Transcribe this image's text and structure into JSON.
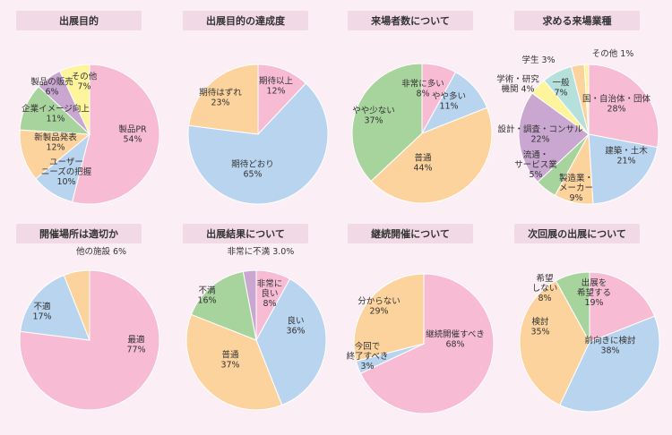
{
  "chart_data": [
    {
      "type": "pie",
      "title": "出展目的",
      "slices": [
        {
          "label": [
            "製品PR",
            "54%"
          ],
          "value": 54,
          "color": "#f7bcd4"
        },
        {
          "label": [
            "ユーザー",
            "ニーズの把握",
            "10%"
          ],
          "value": 10,
          "color": "#b8d4ef"
        },
        {
          "label": [
            "新製品発表",
            "12%"
          ],
          "value": 12,
          "color": "#fcd39d"
        },
        {
          "label": [
            "企業イメージ向上",
            "11%"
          ],
          "value": 11,
          "color": "#a7d39c"
        },
        {
          "label": [
            "製品の販売",
            "6%"
          ],
          "value": 6,
          "color": "#c9a7d0"
        },
        {
          "label": [
            "その他",
            "7%"
          ],
          "value": 7,
          "color": "#fdf49b"
        }
      ]
    },
    {
      "type": "pie",
      "title": "出展目的の達成度",
      "slices": [
        {
          "label": [
            "期待以上",
            "12%"
          ],
          "value": 12,
          "color": "#f7bcd4"
        },
        {
          "label": [
            "期待どおり",
            "65%"
          ],
          "value": 65,
          "color": "#b8d4ef"
        },
        {
          "label": [
            "期待はずれ",
            "23%"
          ],
          "value": 23,
          "color": "#fcd39d"
        }
      ]
    },
    {
      "type": "pie",
      "title": "来場者数について",
      "slices": [
        {
          "label": [
            "非常に多い",
            "8%"
          ],
          "value": 8,
          "color": "#f7bcd4"
        },
        {
          "label": [
            "やや多い",
            "11%"
          ],
          "value": 11,
          "color": "#b8d4ef"
        },
        {
          "label": [
            "普通",
            "44%"
          ],
          "value": 44,
          "color": "#fcd39d"
        },
        {
          "label": [
            "やや少ない",
            "37%"
          ],
          "value": 37,
          "color": "#a7d39c"
        }
      ]
    },
    {
      "type": "pie",
      "title": "求める来場業種",
      "slices": [
        {
          "label": [
            "国・自治体・団体",
            "28%"
          ],
          "value": 28,
          "color": "#f7bcd4"
        },
        {
          "label": [
            "建築・土木",
            "21%"
          ],
          "value": 21,
          "color": "#b8d4ef"
        },
        {
          "label": [
            "製造業・",
            "メーカー",
            "9%"
          ],
          "value": 9,
          "color": "#fcd39d"
        },
        {
          "label": [
            "流通・",
            "サービス業",
            "5%"
          ],
          "value": 5,
          "color": "#a7d39c"
        },
        {
          "label": [
            "設計・調査・コンサル",
            "22%"
          ],
          "value": 22,
          "color": "#c9a7d0"
        },
        {
          "label": [
            "学術・研究",
            "機関 4%"
          ],
          "value": 4,
          "color": "#fdf49b"
        },
        {
          "label": [
            "一般",
            "7%"
          ],
          "value": 7,
          "color": "#b5e0dc"
        },
        {
          "label": [
            "学生 3%"
          ],
          "value": 3,
          "color": "#fcd39d"
        },
        {
          "label": [
            "その他 1%"
          ],
          "value": 1,
          "color": "#fdf49b"
        }
      ]
    },
    {
      "type": "pie",
      "title": "開催場所は適切か",
      "slices": [
        {
          "label": [
            "最適",
            "77%"
          ],
          "value": 77,
          "color": "#f7bcd4"
        },
        {
          "label": [
            "不適",
            "17%"
          ],
          "value": 17,
          "color": "#b8d4ef"
        },
        {
          "label": [
            "他の施設 6%"
          ],
          "value": 6,
          "color": "#fcd39d"
        }
      ]
    },
    {
      "type": "pie",
      "title": "出展結果について",
      "slices": [
        {
          "label": [
            "非常に",
            "良い",
            "8%"
          ],
          "value": 8,
          "color": "#f7bcd4"
        },
        {
          "label": [
            "良い",
            "36%"
          ],
          "value": 36,
          "color": "#b8d4ef"
        },
        {
          "label": [
            "普通",
            "37%"
          ],
          "value": 37,
          "color": "#fcd39d"
        },
        {
          "label": [
            "不満",
            "16%"
          ],
          "value": 16,
          "color": "#a7d39c"
        },
        {
          "label": [
            "非常に不満 3.0%"
          ],
          "value": 3,
          "color": "#c9a7d0"
        }
      ]
    },
    {
      "type": "pie",
      "title": "継続開催について",
      "slices": [
        {
          "label": [
            "継続開催すべき",
            "68%"
          ],
          "value": 68,
          "color": "#f7bcd4"
        },
        {
          "label": [
            "今回で",
            "終了すべき",
            "3%"
          ],
          "value": 3,
          "color": "#b8d4ef"
        },
        {
          "label": [
            "分からない",
            "29%"
          ],
          "value": 29,
          "color": "#fcd39d"
        }
      ]
    },
    {
      "type": "pie",
      "title": "次回展の出展について",
      "slices": [
        {
          "label": [
            "出展を",
            "希望する",
            "19%"
          ],
          "value": 19,
          "color": "#f7bcd4"
        },
        {
          "label": [
            "前向きに検討",
            "38%"
          ],
          "value": 38,
          "color": "#b8d4ef"
        },
        {
          "label": [
            "検討",
            "35%"
          ],
          "value": 35,
          "color": "#fcd39d"
        },
        {
          "label": [
            "希望",
            "しない",
            "8%"
          ],
          "value": 8,
          "color": "#a7d39c"
        }
      ]
    }
  ]
}
